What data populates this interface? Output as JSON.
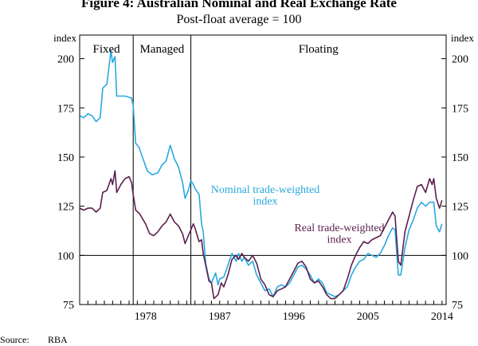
{
  "title": "Figure 4: Australian Nominal and Real Exchange Rate",
  "subtitle": "Post-float average = 100",
  "source_label": "Source:",
  "source_value": "RBA",
  "colors": {
    "nominal": "#29a8e0",
    "real": "#5b1f4f",
    "axis": "#000000"
  },
  "chart_data": {
    "type": "line",
    "title": "Figure 4: Australian Nominal and Real Exchange Rate",
    "subtitle": "Post-float average = 100",
    "ylabel_left": "index",
    "ylabel_right": "index",
    "ylim": [
      75,
      212
    ],
    "xlim": [
      1970,
      2014.5
    ],
    "yticks": [
      75,
      100,
      125,
      150,
      175,
      200
    ],
    "xtick_labels": [
      {
        "x": 1978,
        "label": "1978"
      },
      {
        "x": 1987,
        "label": "1987"
      },
      {
        "x": 1996,
        "label": "1996"
      },
      {
        "x": 2005,
        "label": "2005"
      },
      {
        "x": 2014,
        "label": "2014"
      }
    ],
    "reference_line": 100,
    "regimes": [
      {
        "label": "Fixed",
        "start": 1970,
        "end": 1976.5
      },
      {
        "label": "Managed",
        "start": 1976.5,
        "end": 1983.5
      },
      {
        "label": "Floating",
        "start": 1983.5,
        "end": 2014.5
      }
    ],
    "series": [
      {
        "name": "Nominal trade-weighted index",
        "label_lines": [
          "Nominal trade-weighted",
          "index"
        ],
        "color_key": "nominal",
        "points": [
          [
            1970.0,
            171
          ],
          [
            1970.5,
            170
          ],
          [
            1971.0,
            172
          ],
          [
            1971.5,
            171
          ],
          [
            1972.0,
            168
          ],
          [
            1972.5,
            170
          ],
          [
            1972.8,
            185
          ],
          [
            1973.3,
            187
          ],
          [
            1973.8,
            204
          ],
          [
            1974.0,
            198
          ],
          [
            1974.3,
            201
          ],
          [
            1974.5,
            181
          ],
          [
            1975.5,
            181
          ],
          [
            1976.3,
            180
          ],
          [
            1976.5,
            176
          ],
          [
            1976.8,
            157
          ],
          [
            1977.2,
            155
          ],
          [
            1977.7,
            149
          ],
          [
            1978.2,
            143
          ],
          [
            1978.8,
            141
          ],
          [
            1979.5,
            142
          ],
          [
            1980.0,
            146
          ],
          [
            1980.5,
            148
          ],
          [
            1981.0,
            156
          ],
          [
            1981.5,
            149
          ],
          [
            1982.0,
            145
          ],
          [
            1982.5,
            137
          ],
          [
            1982.8,
            129
          ],
          [
            1983.2,
            133
          ],
          [
            1983.5,
            138
          ],
          [
            1983.8,
            136
          ],
          [
            1984.0,
            134
          ],
          [
            1984.5,
            131
          ],
          [
            1984.8,
            116
          ],
          [
            1985.0,
            112
          ],
          [
            1985.3,
            96
          ],
          [
            1985.7,
            88
          ],
          [
            1986.0,
            86
          ],
          [
            1986.5,
            91
          ],
          [
            1986.8,
            85
          ],
          [
            1987.0,
            88
          ],
          [
            1987.5,
            89
          ],
          [
            1988.0,
            95
          ],
          [
            1988.5,
            101
          ],
          [
            1989.0,
            97
          ],
          [
            1989.3,
            101
          ],
          [
            1989.7,
            97
          ],
          [
            1990.0,
            99
          ],
          [
            1990.5,
            95
          ],
          [
            1991.0,
            97
          ],
          [
            1991.5,
            90
          ],
          [
            1992.0,
            86
          ],
          [
            1992.5,
            82
          ],
          [
            1993.0,
            83
          ],
          [
            1993.5,
            79
          ],
          [
            1994.0,
            84
          ],
          [
            1994.5,
            85
          ],
          [
            1995.0,
            84
          ],
          [
            1995.5,
            86
          ],
          [
            1996.0,
            90
          ],
          [
            1996.5,
            94
          ],
          [
            1997.0,
            95
          ],
          [
            1997.5,
            93
          ],
          [
            1998.0,
            90
          ],
          [
            1998.5,
            86
          ],
          [
            1999.0,
            88
          ],
          [
            1999.5,
            86
          ],
          [
            2000.0,
            81
          ],
          [
            2000.5,
            80
          ],
          [
            2001.0,
            79
          ],
          [
            2001.5,
            80
          ],
          [
            2002.0,
            82
          ],
          [
            2002.5,
            84
          ],
          [
            2003.0,
            90
          ],
          [
            2003.5,
            94
          ],
          [
            2004.0,
            97
          ],
          [
            2004.5,
            98
          ],
          [
            2005.0,
            101
          ],
          [
            2005.5,
            100
          ],
          [
            2006.0,
            99
          ],
          [
            2006.5,
            101
          ],
          [
            2007.0,
            105
          ],
          [
            2007.5,
            110
          ],
          [
            2008.0,
            114
          ],
          [
            2008.3,
            113
          ],
          [
            2008.7,
            90
          ],
          [
            2009.0,
            90
          ],
          [
            2009.5,
            104
          ],
          [
            2010.0,
            113
          ],
          [
            2010.5,
            118
          ],
          [
            2011.0,
            124
          ],
          [
            2011.5,
            127
          ],
          [
            2012.0,
            125
          ],
          [
            2012.5,
            127
          ],
          [
            2013.0,
            127
          ],
          [
            2013.3,
            115
          ],
          [
            2013.7,
            112
          ],
          [
            2014.0,
            116
          ]
        ]
      },
      {
        "name": "Real trade-weighted index",
        "label_lines": [
          "Real trade-weighted",
          "index"
        ],
        "color_key": "real",
        "points": [
          [
            1970.0,
            124
          ],
          [
            1970.5,
            123
          ],
          [
            1971.0,
            124
          ],
          [
            1971.5,
            124
          ],
          [
            1972.0,
            122
          ],
          [
            1972.5,
            124
          ],
          [
            1972.8,
            132
          ],
          [
            1973.3,
            133
          ],
          [
            1973.8,
            139
          ],
          [
            1974.0,
            136
          ],
          [
            1974.3,
            143
          ],
          [
            1974.5,
            132
          ],
          [
            1975.0,
            136
          ],
          [
            1975.5,
            139
          ],
          [
            1976.0,
            140
          ],
          [
            1976.3,
            137
          ],
          [
            1976.5,
            131
          ],
          [
            1976.8,
            123
          ],
          [
            1977.3,
            121
          ],
          [
            1978.0,
            116
          ],
          [
            1978.5,
            111
          ],
          [
            1979.0,
            110
          ],
          [
            1979.5,
            112
          ],
          [
            1980.0,
            115
          ],
          [
            1980.5,
            117
          ],
          [
            1981.0,
            121
          ],
          [
            1981.5,
            117
          ],
          [
            1982.0,
            115
          ],
          [
            1982.5,
            111
          ],
          [
            1982.8,
            106
          ],
          [
            1983.2,
            110
          ],
          [
            1983.5,
            113
          ],
          [
            1983.8,
            116
          ],
          [
            1984.0,
            114
          ],
          [
            1984.5,
            107
          ],
          [
            1984.8,
            108
          ],
          [
            1985.0,
            101
          ],
          [
            1985.3,
            95
          ],
          [
            1985.7,
            87
          ],
          [
            1986.0,
            86
          ],
          [
            1986.3,
            78
          ],
          [
            1986.8,
            80
          ],
          [
            1987.2,
            86
          ],
          [
            1987.5,
            84
          ],
          [
            1988.0,
            90
          ],
          [
            1988.5,
            98
          ],
          [
            1989.0,
            100
          ],
          [
            1989.3,
            98
          ],
          [
            1989.7,
            101
          ],
          [
            1990.0,
            99
          ],
          [
            1990.5,
            97
          ],
          [
            1991.0,
            100
          ],
          [
            1991.5,
            96
          ],
          [
            1992.0,
            88
          ],
          [
            1992.5,
            85
          ],
          [
            1993.0,
            80
          ],
          [
            1993.5,
            79
          ],
          [
            1994.0,
            82
          ],
          [
            1994.5,
            83
          ],
          [
            1995.0,
            84
          ],
          [
            1995.5,
            88
          ],
          [
            1996.0,
            92
          ],
          [
            1996.5,
            96
          ],
          [
            1997.0,
            97
          ],
          [
            1997.5,
            94
          ],
          [
            1998.0,
            88
          ],
          [
            1998.5,
            86
          ],
          [
            1999.0,
            87
          ],
          [
            1999.5,
            84
          ],
          [
            2000.0,
            80
          ],
          [
            2000.5,
            78
          ],
          [
            2001.0,
            78
          ],
          [
            2001.5,
            80
          ],
          [
            2002.0,
            82
          ],
          [
            2002.5,
            88
          ],
          [
            2003.0,
            95
          ],
          [
            2003.5,
            100
          ],
          [
            2004.0,
            104
          ],
          [
            2004.5,
            107
          ],
          [
            2005.0,
            106
          ],
          [
            2005.5,
            108
          ],
          [
            2006.0,
            109
          ],
          [
            2006.5,
            110
          ],
          [
            2007.0,
            114
          ],
          [
            2007.5,
            118
          ],
          [
            2008.0,
            122
          ],
          [
            2008.3,
            120
          ],
          [
            2008.7,
            97
          ],
          [
            2009.0,
            95
          ],
          [
            2009.5,
            112
          ],
          [
            2010.0,
            120
          ],
          [
            2010.5,
            128
          ],
          [
            2011.0,
            135
          ],
          [
            2011.5,
            136
          ],
          [
            2012.0,
            132
          ],
          [
            2012.5,
            139
          ],
          [
            2012.8,
            136
          ],
          [
            2013.0,
            139
          ],
          [
            2013.3,
            129
          ],
          [
            2013.7,
            124
          ],
          [
            2014.0,
            128
          ]
        ]
      }
    ]
  }
}
